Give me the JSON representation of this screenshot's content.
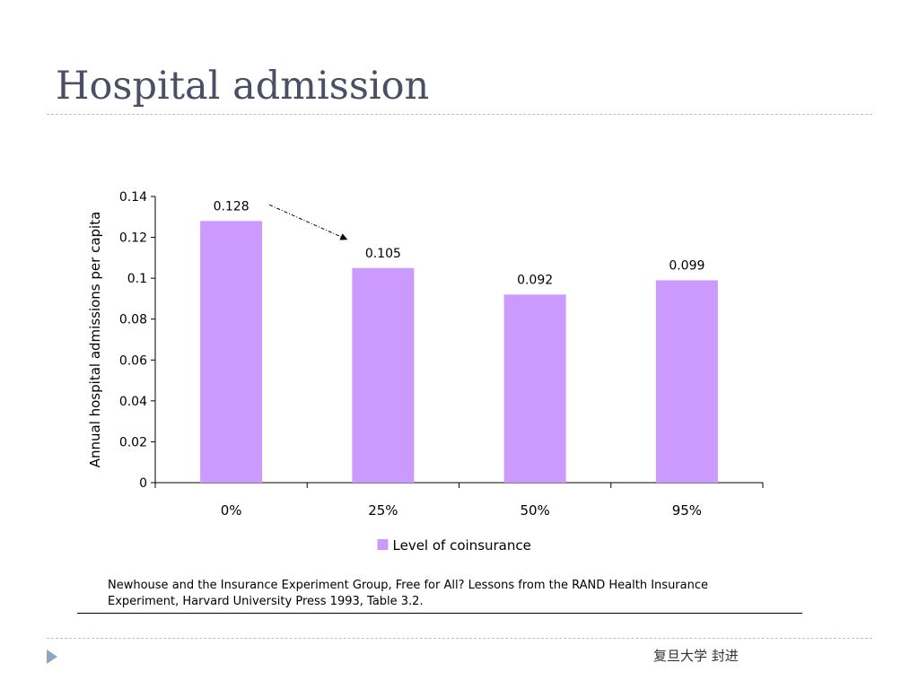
{
  "slide": {
    "title": "Hospital admission",
    "citation_line1": "Newhouse and the Insurance Experiment Group, Free for All? Lessons from the RAND Health Insurance",
    "citation_line2": "Experiment, Harvard University Press 1993, Table 3.2.",
    "footer": "复旦大学  封进"
  },
  "chart_data": {
    "type": "bar",
    "categories": [
      "0%",
      "25%",
      "50%",
      "95%"
    ],
    "series": [
      {
        "name": "Level of coinsurance",
        "values": [
          0.128,
          0.105,
          0.092,
          0.099
        ]
      }
    ],
    "data_labels": [
      "0.128",
      "0.105",
      "0.092",
      "0.099"
    ],
    "ylabel": "Annual hospital admissions per capita",
    "xlabel": "",
    "ylim": [
      0,
      0.14
    ],
    "yticks": [
      0,
      0.02,
      0.04,
      0.06,
      0.08,
      0.1,
      0.12,
      0.14
    ],
    "ytick_labels": [
      "0",
      "0.02",
      "0.04",
      "0.06",
      "0.08",
      "0.1",
      "0.12",
      "0.14"
    ],
    "legend_position": "bottom",
    "grid": false,
    "annotation": {
      "type": "arrow",
      "from_category": "0%",
      "to_category": "25%"
    },
    "colors": {
      "bar": "#cc99ff",
      "axis": "#000000"
    }
  }
}
